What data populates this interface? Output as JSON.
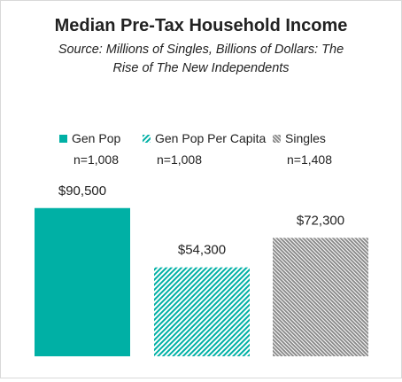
{
  "chart_data": {
    "type": "bar",
    "title": "Median Pre-Tax Household Income",
    "subtitle": "Source: Millions of Singles, Billions of Dollars: The Rise of The New Independents",
    "subtitle_lines": [
      "Source: Millions of Singles, Billions of Dollars: The",
      "Rise of The New Independents"
    ],
    "xlabel": "",
    "ylabel": "",
    "ylim": [
      0,
      100000
    ],
    "grid": false,
    "legend_position": "top",
    "categories": [
      "Gen Pop",
      "Gen Pop Per Capita",
      "Singles"
    ],
    "values": [
      90500,
      54300,
      72300
    ],
    "value_labels": [
      "$90,500",
      "$54,300",
      "$72,300"
    ],
    "legend": [
      {
        "name": "Gen Pop",
        "n": "n=1,008",
        "color": "#00b0a5",
        "fill": "solid"
      },
      {
        "name": "Gen Pop Per Capita",
        "n": "n=1,008",
        "color": "#00b0a5",
        "fill": "hatched"
      },
      {
        "name": "Singles",
        "n": "n=1,408",
        "color": "#8c8c8c",
        "fill": "hatched"
      }
    ]
  }
}
